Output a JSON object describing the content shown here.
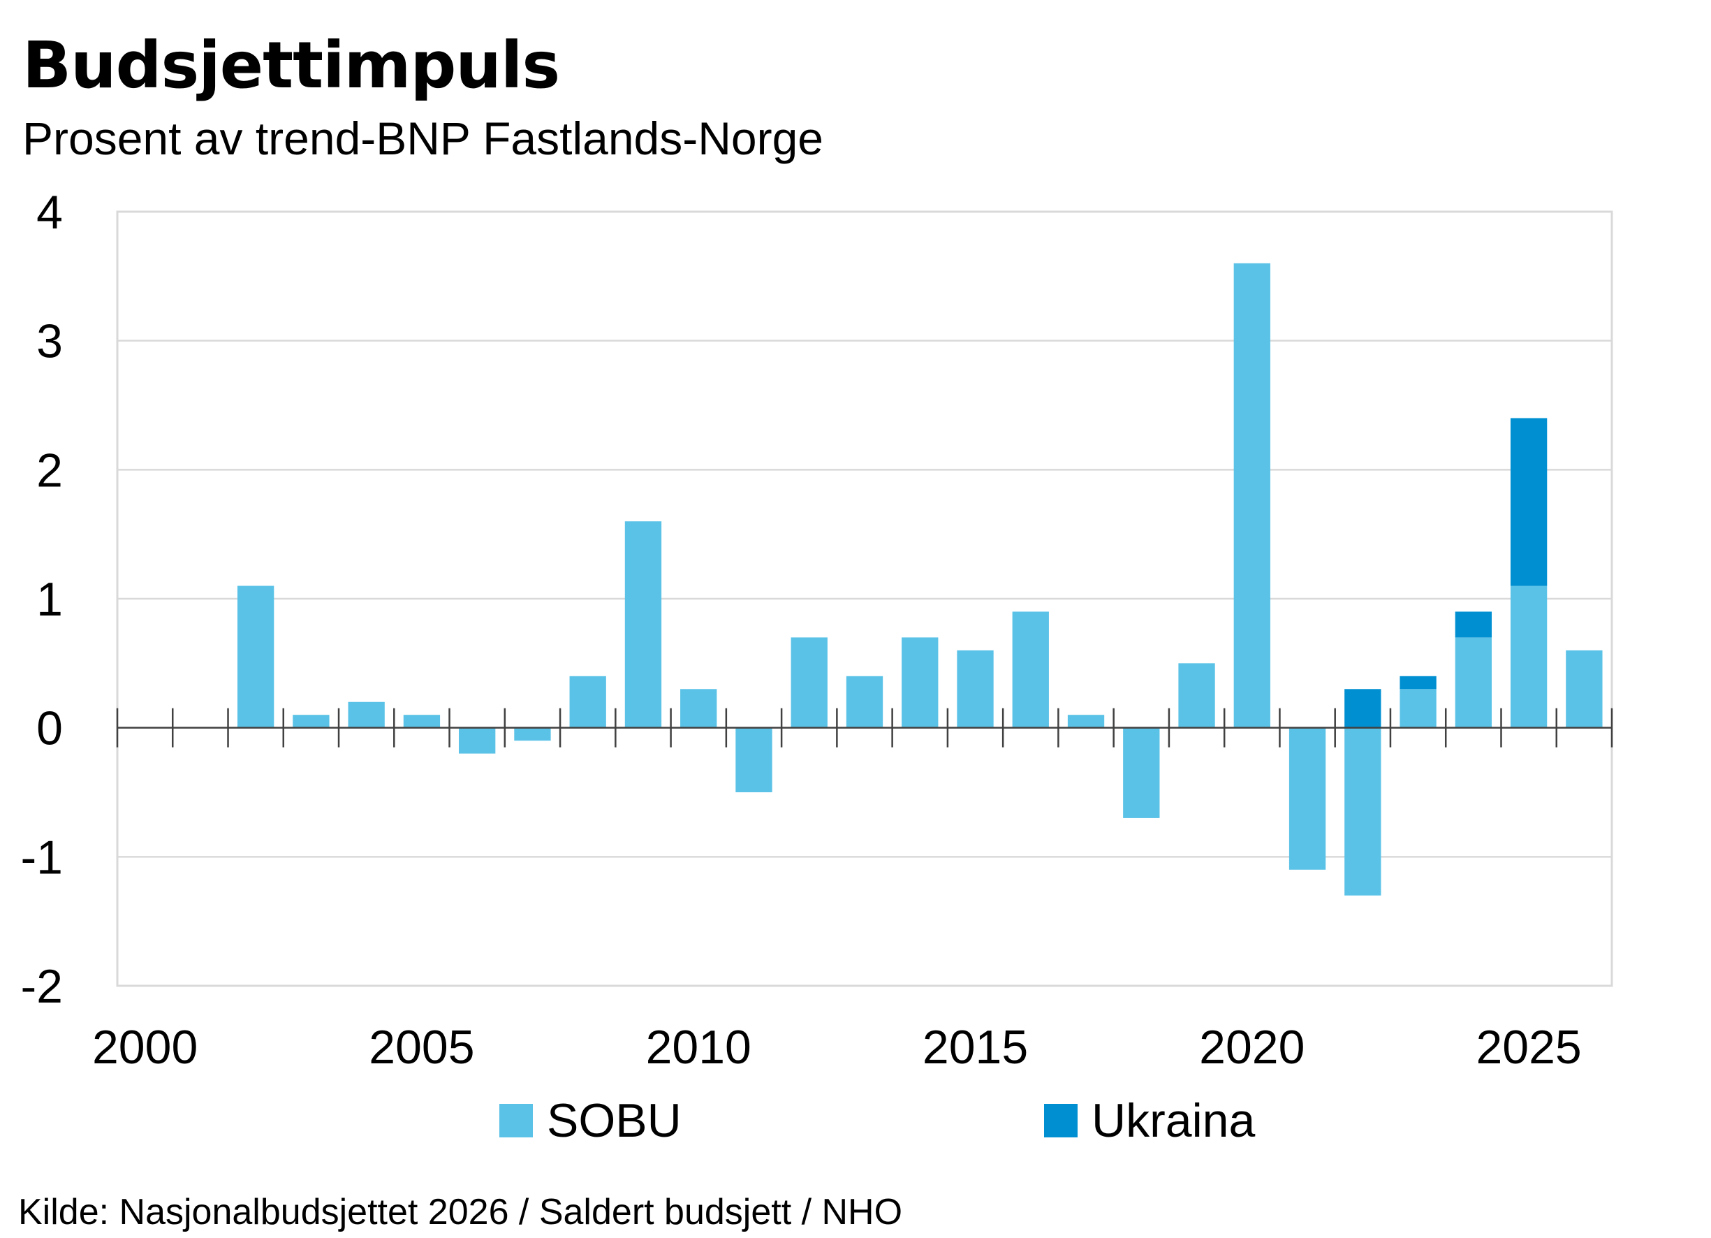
{
  "title": "Budsjettimpuls",
  "subtitle": "Prosent av trend-BNP Fastlands-Norge",
  "source": "Kilde: Nasjonalbudsjettet 2026 / Saldert budsjett / NHO",
  "colors": {
    "SOBU": "#5bc2e7",
    "Ukraina": "#008fd1",
    "grid": "#d9d9d9",
    "axis": "#404040"
  },
  "chart_data": {
    "type": "bar",
    "stacked": true,
    "x": [
      2000,
      2001,
      2002,
      2003,
      2004,
      2005,
      2006,
      2007,
      2008,
      2009,
      2010,
      2011,
      2012,
      2013,
      2014,
      2015,
      2016,
      2017,
      2018,
      2019,
      2020,
      2021,
      2022,
      2023,
      2024,
      2025,
      2026
    ],
    "x_tick_labels": [
      "2000",
      "2005",
      "2010",
      "2015",
      "2020",
      "2025"
    ],
    "x_tick_values": [
      2000,
      2005,
      2010,
      2015,
      2020,
      2025
    ],
    "y_tick_labels": [
      "4",
      "3",
      "2",
      "1",
      "0",
      "-1",
      "-2"
    ],
    "y_tick_values": [
      4,
      3,
      2,
      1,
      0,
      -1,
      -2
    ],
    "ylim": [
      -2,
      4
    ],
    "grid": true,
    "legend_position": "bottom",
    "series": [
      {
        "name": "SOBU",
        "values": [
          null,
          null,
          1.1,
          0.1,
          0.2,
          0.1,
          -0.2,
          -0.1,
          0.4,
          1.6,
          0.3,
          -0.5,
          0.7,
          0.4,
          0.7,
          0.6,
          0.9,
          0.1,
          -0.7,
          0.5,
          3.6,
          -1.1,
          -1.3,
          0.3,
          0.7,
          1.1,
          0.6
        ]
      },
      {
        "name": "Ukraina",
        "values": [
          null,
          null,
          null,
          null,
          null,
          null,
          null,
          null,
          null,
          null,
          null,
          null,
          null,
          null,
          null,
          null,
          null,
          null,
          null,
          null,
          null,
          null,
          0.3,
          0.1,
          0.2,
          1.3,
          null
        ]
      }
    ]
  }
}
